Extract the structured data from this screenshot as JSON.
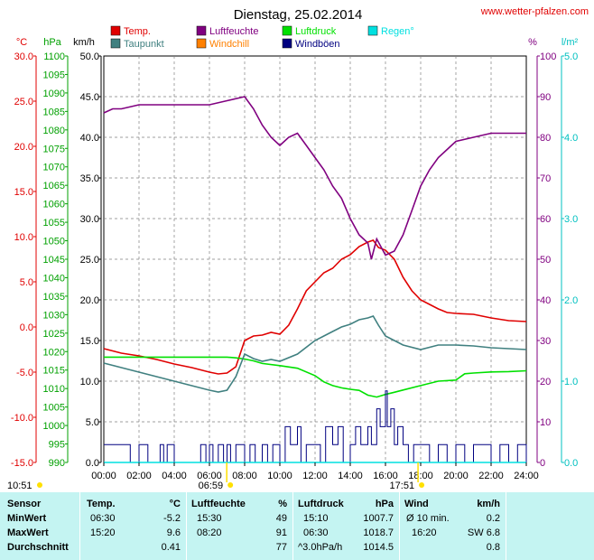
{
  "title": "Dienstag, 25.02.2014",
  "website": "www.wetter-pfalzen.com",
  "axes": {
    "temp_unit": "°C",
    "pressure_unit": "hPa",
    "wind_unit": "km/h",
    "humidity_unit": "%",
    "rain_unit": "l/m²",
    "temp_ticks": [
      "30.0",
      "25.0",
      "20.0",
      "15.0",
      "10.0",
      "5.0",
      "0.0",
      "-5.0",
      "-10.0",
      "-15.0"
    ],
    "pressure_ticks": [
      "1100",
      "1095",
      "1090",
      "1085",
      "1080",
      "1075",
      "1070",
      "1065",
      "1060",
      "1055",
      "1050",
      "1045",
      "1040",
      "1035",
      "1030",
      "1025",
      "1020",
      "1015",
      "1010",
      "1005",
      "1000",
      "995",
      "990"
    ],
    "wind_ticks": [
      "50.0",
      "45.0",
      "40.0",
      "35.0",
      "30.0",
      "25.0",
      "20.0",
      "15.0",
      "10.0",
      "5.0",
      "0.0"
    ],
    "humidity_ticks": [
      "100",
      "90",
      "80",
      "70",
      "60",
      "50",
      "40",
      "30",
      "20",
      "10",
      "0"
    ],
    "rain_ticks": [
      "5.0",
      "4.0",
      "3.0",
      "2.0",
      "1.0",
      "0.0"
    ],
    "x_ticks": [
      "00:00",
      "02:00",
      "04:00",
      "06:00",
      "08:00",
      "10:00",
      "12:00",
      "14:00",
      "16:00",
      "18:00",
      "20:00",
      "22:00",
      "24:00"
    ]
  },
  "sun": {
    "daylength": "10:51",
    "sunrise": "06:59",
    "sunset": "17:51"
  },
  "legend": [
    {
      "label": "Temp.",
      "color": "#e00000"
    },
    {
      "label": "Luftfeuchte",
      "color": "#800080"
    },
    {
      "label": "Luftdruck",
      "color": "#00e000"
    },
    {
      "label": "Regen°",
      "color": "#00e0e0"
    },
    {
      "label": "Taupunkt",
      "color": "#408080"
    },
    {
      "label": "Windchill",
      "color": "#ff8000"
    },
    {
      "label": "Windböen",
      "color": "#000080"
    }
  ],
  "colors": {
    "temp": "#e00000",
    "humidity": "#800080",
    "pressure": "#00e000",
    "rain": "#00e0e0",
    "dewpoint": "#408080",
    "wind": "#000080",
    "sun": "#ffe000",
    "temp_axis": "#e00000",
    "pressure_axis": "#00a000",
    "wind_axis": "#000000",
    "humidity_axis": "#800080",
    "rain_axis": "#00c0c0"
  },
  "chart_data": {
    "type": "line",
    "x_unit": "hour",
    "xlim": [
      0,
      24
    ],
    "wind_ylim": [
      0,
      50
    ],
    "series": [
      {
        "name": "Temp.",
        "axis": "temp",
        "ylim": [
          -15,
          30
        ],
        "x": [
          0,
          1,
          2,
          3,
          4,
          5,
          6,
          6.5,
          7,
          7.5,
          8,
          8.5,
          9,
          9.5,
          10,
          10.5,
          11,
          11.5,
          12,
          12.5,
          13,
          13.5,
          14,
          14.5,
          15,
          15.3,
          15.6,
          16,
          16.5,
          17,
          17.5,
          18,
          18.5,
          19,
          19.5,
          20,
          21,
          22,
          23,
          24
        ],
        "y": [
          -2.4,
          -2.9,
          -3.2,
          -3.6,
          -4.1,
          -4.5,
          -5.0,
          -5.2,
          -5.1,
          -4.4,
          -1.5,
          -1.0,
          -0.9,
          -0.6,
          -0.8,
          0.2,
          2.0,
          4.0,
          5.0,
          6.0,
          6.5,
          7.5,
          8.0,
          8.9,
          9.4,
          9.6,
          8.8,
          8.5,
          7.5,
          5.5,
          4.0,
          3.0,
          2.5,
          2.0,
          1.6,
          1.5,
          1.4,
          1.0,
          0.7,
          0.6
        ]
      },
      {
        "name": "Luftfeuchte",
        "axis": "humidity",
        "ylim": [
          0,
          100
        ],
        "x": [
          0,
          0.5,
          1,
          2,
          3,
          4,
          5,
          6,
          7,
          8,
          8.5,
          9,
          9.5,
          10,
          10.5,
          11,
          11.5,
          12,
          12.5,
          13,
          13.5,
          14,
          14.5,
          15,
          15.2,
          15.5,
          16,
          16.5,
          17,
          17.5,
          18,
          18.5,
          19,
          19.5,
          20,
          21,
          22,
          23,
          24
        ],
        "y": [
          86,
          87,
          87,
          88,
          88,
          88,
          88,
          88,
          89,
          90,
          87,
          83,
          80,
          78,
          80,
          81,
          78,
          75,
          72,
          68,
          65,
          60,
          56,
          54,
          50,
          55,
          51,
          52,
          56,
          62,
          68,
          72,
          75,
          77,
          79,
          80,
          81,
          81,
          81
        ]
      },
      {
        "name": "Luftdruck",
        "axis": "pressure",
        "ylim": [
          990,
          1100
        ],
        "x": [
          0,
          2,
          4,
          6,
          7,
          7.5,
          8,
          8.5,
          9,
          10,
          11,
          12,
          12.5,
          13,
          13.5,
          14,
          14.5,
          15,
          15.5,
          16,
          16.5,
          17,
          18,
          19,
          20,
          20.5,
          21,
          22,
          23,
          24
        ],
        "y": [
          1018.5,
          1018.5,
          1018.5,
          1018.5,
          1018.5,
          1018.3,
          1018,
          1017.5,
          1016.8,
          1016.2,
          1015.5,
          1013.5,
          1011.8,
          1010.8,
          1010.2,
          1009.8,
          1009.5,
          1008.2,
          1007.7,
          1008.4,
          1009.0,
          1009.6,
          1010.8,
          1012.0,
          1012.3,
          1014,
          1014.2,
          1014.5,
          1014.6,
          1014.8
        ]
      },
      {
        "name": "Taupunkt",
        "axis": "temp",
        "ylim": [
          -15,
          30
        ],
        "x": [
          0,
          1,
          2,
          3,
          4,
          5,
          6,
          6.5,
          7,
          7.5,
          8,
          8.5,
          9,
          9.5,
          10,
          11,
          12,
          12.5,
          13,
          13.5,
          14,
          14.5,
          15,
          15.3,
          15.6,
          16,
          16.5,
          17,
          18,
          19,
          20,
          21,
          22,
          23,
          24
        ],
        "y": [
          -4.0,
          -4.5,
          -5.0,
          -5.5,
          -6.0,
          -6.5,
          -7.0,
          -7.2,
          -7.0,
          -5.5,
          -3.0,
          -3.5,
          -3.8,
          -3.6,
          -3.8,
          -3.0,
          -1.5,
          -1.0,
          -0.5,
          0.0,
          0.3,
          0.8,
          1.0,
          1.2,
          0.2,
          -1.0,
          -1.5,
          -2.0,
          -2.5,
          -2.0,
          -2.0,
          -2.1,
          -2.3,
          -2.4,
          -2.5
        ]
      },
      {
        "name": "Windböen",
        "axis": "wind",
        "ylim": [
          0,
          50
        ],
        "x": [
          0,
          1,
          1.5,
          2,
          2.5,
          3,
          3.2,
          3.4,
          3.6,
          4,
          5,
          5.5,
          5.8,
          6,
          6.2,
          6.5,
          6.8,
          7,
          7.2,
          7.5,
          8,
          8.3,
          8.6,
          9,
          9.3,
          9.6,
          10,
          10.3,
          10.6,
          11,
          11.2,
          11.5,
          12,
          12.3,
          12.6,
          13,
          13.3,
          13.6,
          14,
          14.3,
          14.6,
          15,
          15.2,
          15.5,
          15.7,
          16,
          16.1,
          16.3,
          16.5,
          16.7,
          17,
          17.3,
          17.6,
          18,
          18.5,
          19,
          19.5,
          20,
          20.5,
          21,
          21.5,
          22,
          22.5,
          23,
          23.5,
          24
        ],
        "y": [
          2.2,
          2.2,
          0,
          2.2,
          0,
          0,
          2.2,
          0,
          2.2,
          0,
          0,
          2.2,
          0,
          2.2,
          0,
          2.2,
          0,
          2.2,
          0,
          2.2,
          0,
          2.2,
          0,
          2.2,
          0,
          2.2,
          0,
          4.4,
          2.2,
          4.4,
          0,
          2.2,
          2.2,
          0,
          4.4,
          2.2,
          4.4,
          0,
          2.2,
          4.4,
          2.2,
          4.4,
          2.2,
          6.6,
          4.4,
          8.8,
          4.4,
          6.6,
          2.2,
          4.4,
          2.2,
          0,
          2.2,
          2.2,
          0,
          2.2,
          0,
          2.2,
          0,
          2.2,
          2.2,
          0,
          2.2,
          0,
          2.2,
          0
        ]
      },
      {
        "name": "Regen°",
        "axis": "rain",
        "ylim": [
          0,
          5
        ],
        "x": [
          0,
          24
        ],
        "y": [
          0,
          0
        ]
      }
    ]
  },
  "stats": {
    "headers": {
      "sensor": "Sensor",
      "temp": "Temp.",
      "temp_unit": "°C",
      "hum": "Luftfeuchte",
      "hum_unit": "%",
      "press": "Luftdruck",
      "press_unit": "hPa",
      "wind": "Wind",
      "wind_unit": "km/h"
    },
    "rows": [
      {
        "label": "MinWert",
        "t_time": "06:30",
        "t_val": "-5.2",
        "h_time": "15:30",
        "h_val": "49",
        "p_time": "15:10",
        "p_val": "1007.7",
        "w_time": "Ø 10 min.",
        "w_val": "0.2"
      },
      {
        "label": "MaxWert",
        "t_time": "15:20",
        "t_val": "9.6",
        "h_time": "08:20",
        "h_val": "91",
        "p_time": "06:30",
        "p_val": "1018.7",
        "w_time": "16:20",
        "w_val": "SW 6.8"
      },
      {
        "label": "Durchschnitt",
        "t_time": "",
        "t_val": "0.41",
        "h_time": "",
        "h_val": "77",
        "p_time": "^3.0hPa/h",
        "p_val": "1014.5",
        "w_time": "",
        "w_val": "0.8"
      }
    ]
  }
}
